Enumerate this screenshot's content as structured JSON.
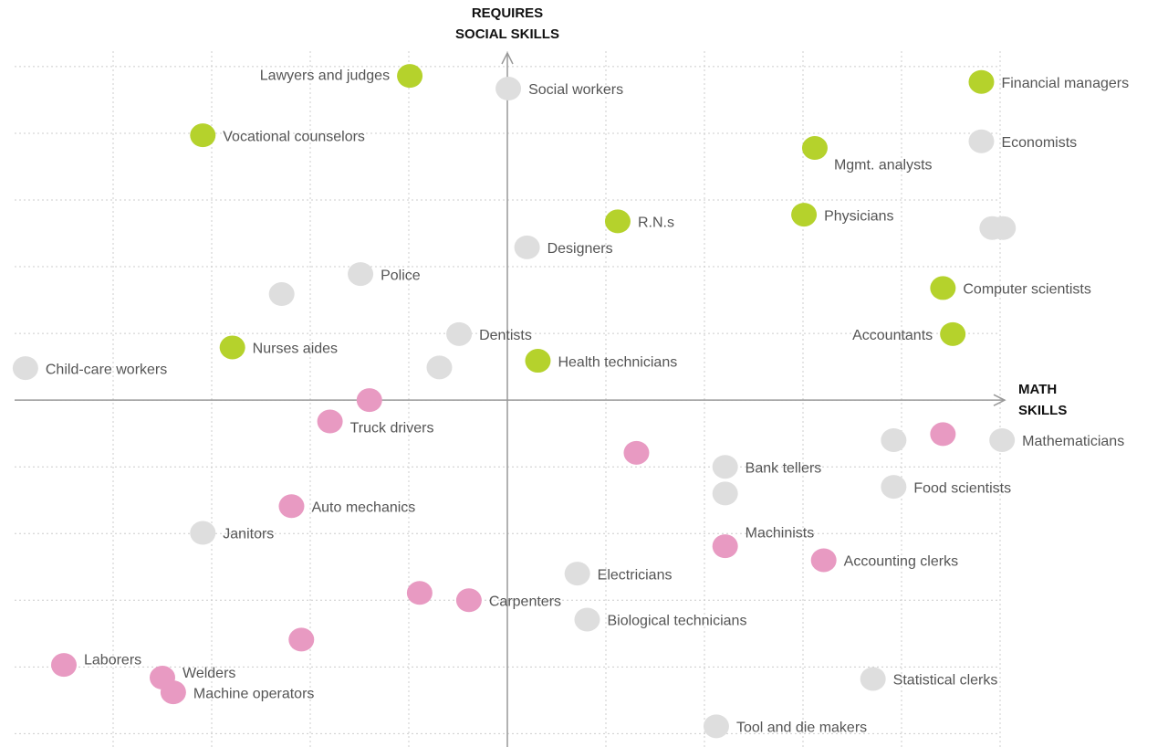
{
  "chart_data": {
    "type": "scatter",
    "y_label": [
      "REQUIRES",
      "SOCIAL SKILLS"
    ],
    "x_label": [
      "MATH",
      "SKILLS"
    ],
    "xlim": [
      -5,
      5.2
    ],
    "ylim": [
      -5.2,
      5.3
    ],
    "xticks": [
      -4,
      -3,
      -2,
      -1,
      0,
      1,
      2,
      3,
      4,
      5
    ],
    "yticks": [
      -5,
      -4,
      -3,
      -2,
      -1,
      0,
      1,
      2,
      3,
      4,
      5
    ],
    "grid": true,
    "series": [
      {
        "color": "#b5d22c",
        "labels": [
          "Lawyers and judges",
          "Vocational counselors",
          "Financial managers",
          "Mgmt. analysts",
          "R.N.s",
          "Physicians",
          "Computer scientists",
          "Accountants",
          "Nurses aides",
          "Health technicians"
        ],
        "x": [
          -0.99,
          -3.09,
          4.81,
          3.12,
          1.12,
          3.01,
          4.42,
          4.52,
          -2.79,
          0.31
        ],
        "y": [
          4.86,
          3.97,
          4.77,
          3.78,
          2.68,
          2.78,
          1.68,
          0.99,
          0.79,
          0.59
        ]
      },
      {
        "color": "#dedede",
        "labels": [
          "Social workers",
          "Economists",
          null,
          null,
          "Designers",
          "Police",
          null,
          "Dentists",
          "Child-care workers",
          null,
          null,
          "Mathematicians",
          "Bank tellers",
          null,
          "Food scientists",
          "Janitors",
          "Electricians",
          "Biological technicians",
          "Statistical clerks",
          "Tool and die makers"
        ],
        "x": [
          0.01,
          4.81,
          4.92,
          5.03,
          0.2,
          -1.49,
          -2.29,
          -0.49,
          -4.89,
          -0.69,
          3.92,
          5.02,
          2.21,
          2.21,
          3.92,
          -3.09,
          0.71,
          0.81,
          3.71,
          2.12
        ],
        "y": [
          4.67,
          3.88,
          2.58,
          2.58,
          2.29,
          1.89,
          1.59,
          0.99,
          0.48,
          0.49,
          -0.6,
          -0.6,
          -1.0,
          -1.4,
          -1.3,
          -1.99,
          -2.6,
          -3.29,
          -4.18,
          -4.89
        ]
      },
      {
        "color": "#e89ac2",
        "labels": [
          null,
          "Truck drivers",
          null,
          null,
          "Auto mechanics",
          "Machinists",
          "Accounting clerks",
          null,
          "Carpenters",
          null,
          "Laborers",
          "Welders",
          "Machine operators"
        ],
        "x": [
          -1.4,
          -1.8,
          1.31,
          4.42,
          -2.19,
          2.21,
          3.21,
          -0.89,
          -0.39,
          -2.09,
          -4.5,
          -3.5,
          -3.39
        ],
        "y": [
          0,
          -0.32,
          -0.79,
          -0.51,
          -1.59,
          -2.19,
          -2.4,
          -2.89,
          -3.0,
          -3.59,
          -3.97,
          -4.16,
          -4.38
        ]
      }
    ]
  }
}
